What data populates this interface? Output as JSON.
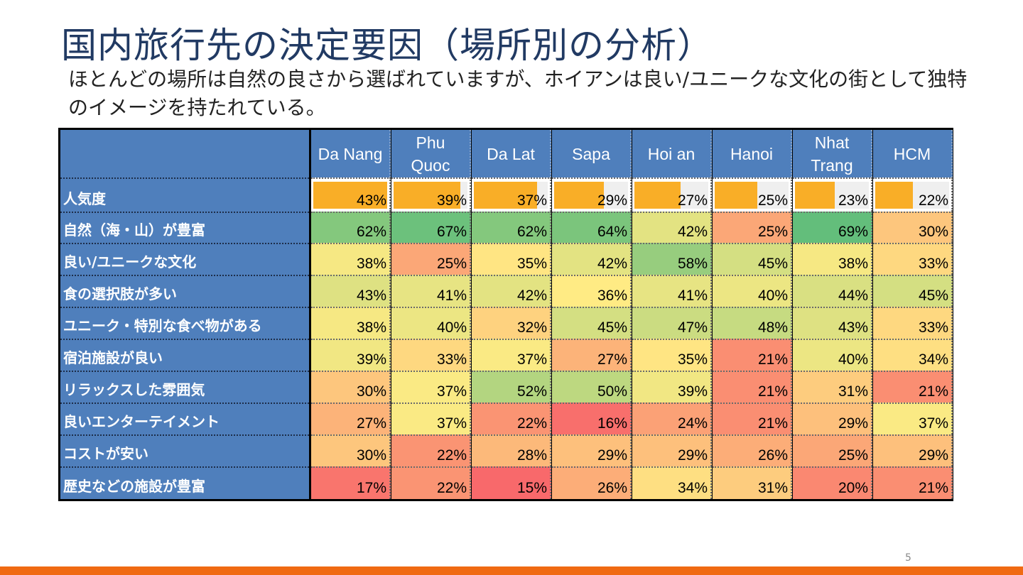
{
  "title": "国内旅行先の決定要因（場所別の分析）",
  "subtitle": "ほとんどの場所は自然の良さから選ばれていますが、ホイアンは良い/ユニークな文化の街として独特のイメージを持たれている。",
  "page_number": "5",
  "colors": {
    "header_blue": "#4f7fbc",
    "popularity_bar": "#f9ae27",
    "bottom_bar": "#f06a12",
    "scale_high": "#63be7b",
    "scale_mid": "#ffeb84",
    "scale_low": "#f8696b"
  },
  "table": {
    "columns": [
      "Da Nang",
      "Phu\nQuoc",
      "Da Lat",
      "Sapa",
      "Hoi an",
      "Hanoi",
      "Nhat\nTrang",
      "HCM"
    ],
    "popularity": {
      "label": "人気度",
      "values": [
        43,
        39,
        37,
        29,
        27,
        25,
        23,
        22
      ],
      "display": [
        "43%",
        "39%",
        "37%",
        "29%",
        "27%",
        "25%",
        "23%",
        "22%"
      ]
    },
    "rows": [
      {
        "label": "自然（海・山）が豊富",
        "values": [
          62,
          67,
          62,
          64,
          42,
          25,
          69,
          30
        ],
        "display": [
          "62%",
          "67%",
          "62%",
          "64%",
          "42%",
          "25%",
          "69%",
          "30%"
        ]
      },
      {
        "label": "良い/ユニークな文化",
        "values": [
          38,
          25,
          35,
          42,
          58,
          45,
          38,
          33
        ],
        "display": [
          "38%",
          "25%",
          "35%",
          "42%",
          "58%",
          "45%",
          "38%",
          "33%"
        ]
      },
      {
        "label": "食の選択肢が多い",
        "values": [
          43,
          41,
          42,
          36,
          41,
          40,
          44,
          45
        ],
        "display": [
          "43%",
          "41%",
          "42%",
          "36%",
          "41%",
          "40%",
          "44%",
          "45%"
        ]
      },
      {
        "label": "ユニーク・特別な食べ物がある",
        "values": [
          38,
          40,
          32,
          45,
          47,
          48,
          43,
          33
        ],
        "display": [
          "38%",
          "40%",
          "32%",
          "45%",
          "47%",
          "48%",
          "43%",
          "33%"
        ]
      },
      {
        "label": "宿泊施設が良い",
        "values": [
          39,
          33,
          37,
          27,
          35,
          21,
          40,
          34
        ],
        "display": [
          "39%",
          "33%",
          "37%",
          "27%",
          "35%",
          "21%",
          "40%",
          "34%"
        ]
      },
      {
        "label": "リラックスした雰囲気",
        "values": [
          30,
          37,
          52,
          50,
          39,
          21,
          31,
          21
        ],
        "display": [
          "30%",
          "37%",
          "52%",
          "50%",
          "39%",
          "21%",
          "31%",
          "21%"
        ]
      },
      {
        "label": "良いエンターテイメント",
        "values": [
          27,
          37,
          22,
          16,
          24,
          21,
          29,
          37
        ],
        "display": [
          "27%",
          "37%",
          "22%",
          "16%",
          "24%",
          "21%",
          "29%",
          "37%"
        ]
      },
      {
        "label": "コストが安い",
        "values": [
          30,
          22,
          28,
          29,
          29,
          26,
          25,
          29
        ],
        "display": [
          "30%",
          "22%",
          "28%",
          "29%",
          "29%",
          "26%",
          "25%",
          "29%"
        ]
      },
      {
        "label": "歴史などの施設が豊富",
        "values": [
          17,
          22,
          15,
          26,
          34,
          31,
          20,
          21
        ],
        "display": [
          "17%",
          "22%",
          "15%",
          "26%",
          "34%",
          "31%",
          "20%",
          "21%"
        ]
      }
    ]
  }
}
